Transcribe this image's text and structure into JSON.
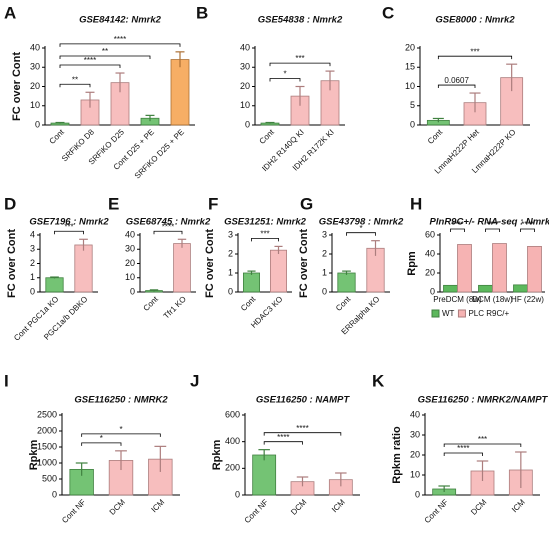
{
  "chart_data": [
    {
      "panel": "A",
      "type": "bar",
      "title": "GSE84142: Nmrk2",
      "y_label": "FC over Cont",
      "categories": [
        "Cont",
        "SRFiKO D8",
        "SRFiKO D25",
        "Cont D25 + PE",
        "SRFiKO D25 + PE"
      ],
      "values": [
        1,
        13,
        22,
        3.5,
        34
      ],
      "errors": [
        0.3,
        4,
        5,
        1.5,
        4
      ],
      "colors": [
        "#5cb85c",
        "#f6b3b3",
        "#f6b3b3",
        "#5cb85c",
        "#f5a04a"
      ],
      "ylim": [
        0,
        40
      ],
      "yticks": [
        0,
        10,
        20,
        30,
        40
      ],
      "annotations": [
        "**",
        "****",
        "**",
        "****"
      ]
    },
    {
      "panel": "B",
      "type": "bar",
      "title": "GSE54838 : Nmrk2",
      "categories": [
        "Cont",
        "IDH2 R140Q KI",
        "IDH2 R172K KI"
      ],
      "values": [
        1,
        15,
        23
      ],
      "errors": [
        0.3,
        5,
        5
      ],
      "colors": [
        "#5cb85c",
        "#f6b3b3",
        "#f6b3b3"
      ],
      "ylim": [
        0,
        40
      ],
      "yticks": [
        0,
        10,
        20,
        30,
        40
      ],
      "annotations": [
        "*",
        "***"
      ]
    },
    {
      "panel": "C",
      "type": "bar",
      "title": "GSE8000 : Nmrk2",
      "categories": [
        "Cont",
        "LmnaH222P Het",
        "LmnaH222P KO"
      ],
      "values": [
        1.2,
        5.8,
        12.3
      ],
      "errors": [
        0.5,
        2.5,
        3.5
      ],
      "colors": [
        "#5cb85c",
        "#f6b3b3",
        "#f6b3b3"
      ],
      "ylim": [
        0,
        20
      ],
      "yticks": [
        0,
        5,
        10,
        15,
        20
      ],
      "annotations": [
        "0.0607",
        "***"
      ]
    },
    {
      "panel": "D",
      "type": "bar",
      "title": "GSE7196 : Nmrk2",
      "y_label": "FC over Cont",
      "categories": [
        "Cont PGC1a KO",
        "PGC1a/b DBKO"
      ],
      "values": [
        1,
        3.3
      ],
      "errors": [
        0.05,
        0.4
      ],
      "colors": [
        "#5cb85c",
        "#f6b3b3"
      ],
      "ylim": [
        0,
        4
      ],
      "yticks": [
        0,
        1,
        2,
        3,
        4
      ],
      "annotations": [
        "***"
      ]
    },
    {
      "panel": "E",
      "type": "bar",
      "title": "GSE68745 : Nmrk2",
      "categories": [
        "Cont",
        "Tfr1 KO"
      ],
      "values": [
        1,
        34
      ],
      "errors": [
        0.5,
        3
      ],
      "colors": [
        "#5cb85c",
        "#f6b3b3"
      ],
      "ylim": [
        0,
        40
      ],
      "yticks": [
        0,
        10,
        20,
        30,
        40
      ],
      "annotations": [
        "****"
      ]
    },
    {
      "panel": "F",
      "type": "bar",
      "title": "GSE31251: Nmrk2",
      "y_label": "FC over Cont",
      "categories": [
        "Cont",
        "HDAC3 KO"
      ],
      "values": [
        1,
        2.2
      ],
      "errors": [
        0.1,
        0.2
      ],
      "colors": [
        "#5cb85c",
        "#f6b3b3"
      ],
      "ylim": [
        0,
        3
      ],
      "yticks": [
        0,
        1,
        2,
        3
      ],
      "annotations": [
        "***"
      ]
    },
    {
      "panel": "G",
      "type": "bar",
      "title": "GSE43798 : Nmrk2",
      "y_label": "FC over Cont",
      "categories": [
        "Cont",
        "ERRalpha KO"
      ],
      "values": [
        1,
        2.3
      ],
      "errors": [
        0.1,
        0.4
      ],
      "colors": [
        "#5cb85c",
        "#f6b3b3"
      ],
      "ylim": [
        0,
        3
      ],
      "yticks": [
        0,
        1,
        2,
        3
      ],
      "annotations": [
        "*"
      ]
    },
    {
      "panel": "H",
      "type": "bar",
      "title": "PlnR9C+/- RNA-seq : Nmrk2",
      "y_label": "Rpm",
      "categories": [
        "PreDCM (8w)",
        "DCM (18w)",
        "HF (22w)"
      ],
      "series": [
        {
          "name": "WT",
          "color": "#5cb85c",
          "values": [
            7,
            7,
            7.5
          ]
        },
        {
          "name": "PLC R9C/+",
          "color": "#f6b3b3",
          "values": [
            50,
            51,
            48
          ]
        }
      ],
      "ylim": [
        0,
        60
      ],
      "yticks": [
        0,
        20,
        40,
        60
      ],
      "annotations": [
        "****",
        "****",
        "****"
      ]
    },
    {
      "panel": "I",
      "type": "bar",
      "title": "GSE116250 : NMRK2",
      "y_label": "Rpkm",
      "categories": [
        "Cont NF",
        "DCM",
        "ICM"
      ],
      "values": [
        800,
        1080,
        1120
      ],
      "errors": [
        200,
        300,
        400
      ],
      "colors": [
        "#5cb85c",
        "#f6b3b3",
        "#f6b3b3"
      ],
      "ylim": [
        0,
        2500
      ],
      "yticks": [
        0,
        500,
        1000,
        1500,
        2000,
        2500
      ],
      "annotations": [
        "*",
        "*"
      ]
    },
    {
      "panel": "J",
      "type": "bar",
      "title": "GSE116250 : NAMPT",
      "y_label": "Rpkm",
      "categories": [
        "Cont NF",
        "DCM",
        "ICM"
      ],
      "values": [
        300,
        100,
        115
      ],
      "errors": [
        40,
        35,
        50
      ],
      "colors": [
        "#5cb85c",
        "#f6b3b3",
        "#f6b3b3"
      ],
      "ylim": [
        0,
        600
      ],
      "yticks": [
        0,
        200,
        400,
        600
      ],
      "annotations": [
        "****",
        "****"
      ]
    },
    {
      "panel": "K",
      "type": "bar",
      "title": "GSE116250 : NMRK2/NAMPT",
      "y_label": "Rpkm ratio",
      "categories": [
        "Cont NF",
        "DCM",
        "ICM"
      ],
      "values": [
        3,
        12,
        12.5
      ],
      "errors": [
        1.5,
        5,
        9
      ],
      "colors": [
        "#5cb85c",
        "#f6b3b3",
        "#f6b3b3"
      ],
      "ylim": [
        0,
        40
      ],
      "yticks": [
        0,
        10,
        20,
        30,
        40
      ],
      "annotations": [
        "****",
        "***"
      ]
    }
  ]
}
